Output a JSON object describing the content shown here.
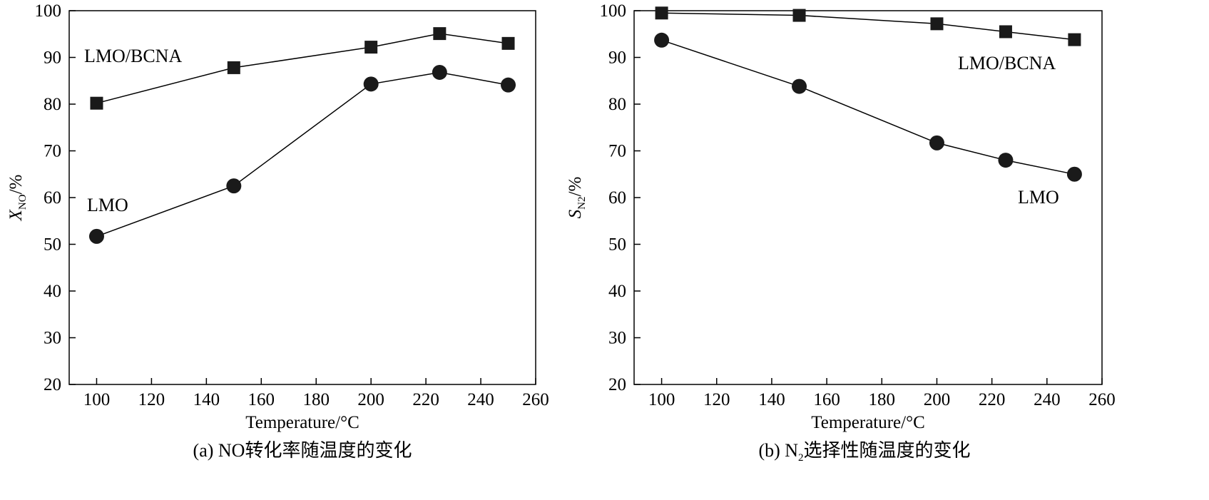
{
  "chart_data": [
    {
      "type": "line",
      "xlabel": "Temperature/°C",
      "ylabel_main": "X",
      "ylabel_sub": "NO",
      "ylabel_suffix": "/%",
      "caption": "(a) NO转化率随温度的变化",
      "xlim": [
        90,
        260
      ],
      "ylim": [
        20,
        100
      ],
      "xticks": [
        100,
        120,
        140,
        160,
        180,
        200,
        220,
        240,
        260
      ],
      "yticks": [
        20,
        30,
        40,
        50,
        60,
        70,
        80,
        90,
        100
      ],
      "grid": false,
      "series": [
        {
          "name": "LMO/BCNA",
          "marker": "square",
          "x": [
            100,
            150,
            200,
            225,
            250
          ],
          "y": [
            80.2,
            87.8,
            92.2,
            95.1,
            93.0
          ]
        },
        {
          "name": "LMO",
          "marker": "circle",
          "x": [
            100,
            150,
            200,
            225,
            250
          ],
          "y": [
            51.7,
            62.5,
            84.3,
            86.8,
            84.1
          ]
        }
      ]
    },
    {
      "type": "line",
      "xlabel": "Temperature/°C",
      "ylabel_main": "S",
      "ylabel_sub": "N2",
      "ylabel_suffix": "/%",
      "caption_main": "(b) N",
      "caption_sub": "2",
      "caption_rest": "选择性随温度的变化",
      "xlim": [
        90,
        260
      ],
      "ylim": [
        20,
        100
      ],
      "xticks": [
        100,
        120,
        140,
        160,
        180,
        200,
        220,
        240,
        260
      ],
      "yticks": [
        20,
        30,
        40,
        50,
        60,
        70,
        80,
        90,
        100
      ],
      "grid": false,
      "series": [
        {
          "name": "LMO/BCNA",
          "marker": "square",
          "x": [
            100,
            150,
            200,
            225,
            250
          ],
          "y": [
            99.5,
            99.0,
            97.2,
            95.5,
            93.8
          ]
        },
        {
          "name": "LMO",
          "marker": "circle",
          "x": [
            100,
            150,
            200,
            225,
            250
          ],
          "y": [
            93.7,
            83.8,
            71.7,
            68.0,
            65.0
          ]
        }
      ]
    }
  ]
}
